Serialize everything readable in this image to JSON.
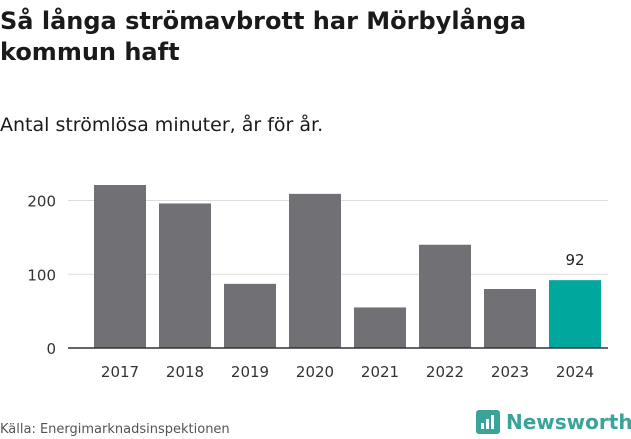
{
  "title": "Så långa strömavbrott har Mörbylånga kommun haft",
  "subtitle": "Antal strömlösa minuter, år för år.",
  "source": "Källa: Energimarknadsinspektionen",
  "brand": {
    "name": "Newsworthy",
    "color": "#3aa39a"
  },
  "chart_data": {
    "type": "bar",
    "categories": [
      "2017",
      "2018",
      "2019",
      "2020",
      "2021",
      "2022",
      "2023",
      "2024"
    ],
    "values": [
      221,
      196,
      87,
      209,
      55,
      140,
      80,
      92
    ],
    "ylim": [
      0,
      240
    ],
    "yticks": [
      0,
      100,
      200
    ],
    "grid": true,
    "xlabel": "",
    "ylabel": "",
    "highlight": {
      "index": 7,
      "label": "92"
    },
    "colors": {
      "bar": "#707075",
      "highlight": "#00a79d",
      "grid": "#dddddd",
      "axis": "#333333"
    }
  }
}
